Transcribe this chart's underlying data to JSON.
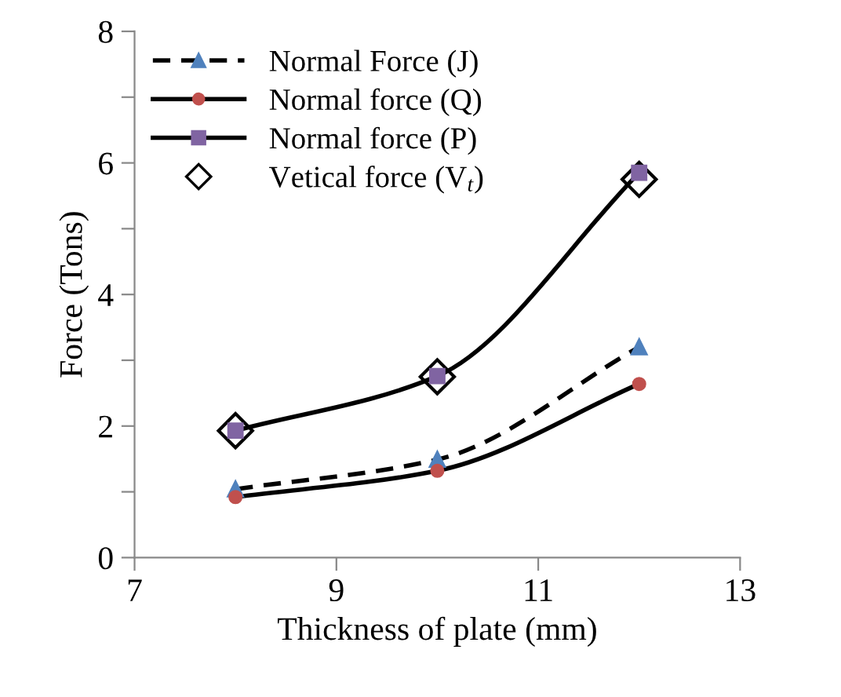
{
  "chart_data": {
    "type": "line",
    "xlabel": "Thickness of plate (mm)",
    "ylabel": "Force (Tons)",
    "x": [
      8,
      10,
      12
    ],
    "series": [
      {
        "name": "Normal Force (J)",
        "color": "#4f81bd",
        "marker": "triangle",
        "line_style": "dashed",
        "values": [
          1.04,
          1.49,
          3.2
        ]
      },
      {
        "name": "Normal force (Q)",
        "color": "#c0504d",
        "marker": "circle",
        "line_style": "solid",
        "values": [
          0.92,
          1.32,
          2.64
        ]
      },
      {
        "name": "Normal force (P)",
        "color": "#8064a2",
        "marker": "square",
        "line_style": "solid",
        "values": [
          1.93,
          2.76,
          5.85
        ]
      },
      {
        "name": "Vetical force (V$_{t}$)",
        "type": "scatter",
        "color": "#000000",
        "marker": "diamond",
        "values": [
          1.93,
          2.75,
          5.75
        ]
      }
    ],
    "xlim": [
      7,
      13
    ],
    "xticks": [
      7,
      9,
      11,
      13
    ],
    "ylim": [
      0,
      8
    ],
    "yticks": [
      0,
      {
        "value": 1,
        "label": null
      },
      2,
      {
        "value": 3,
        "label": null
      },
      4,
      {
        "value": 5,
        "label": null
      },
      6,
      {
        "value": 7,
        "label": null
      },
      8
    ],
    "grid": false,
    "legend": "top left"
  }
}
